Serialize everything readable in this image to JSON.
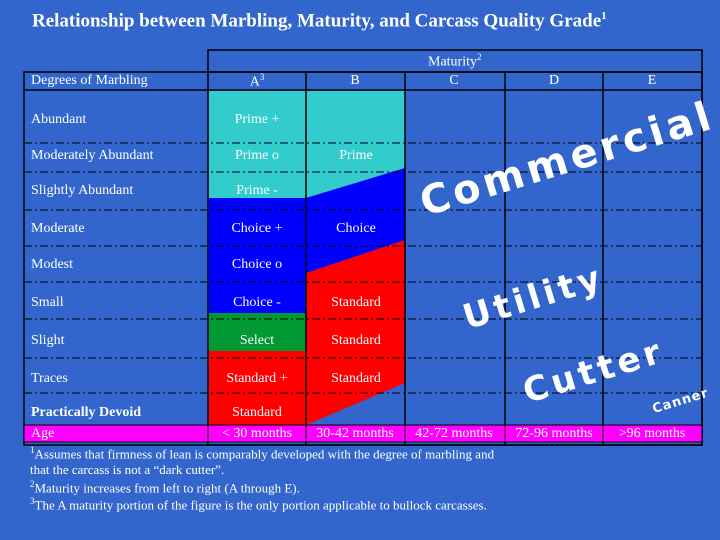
{
  "title": {
    "text": "Relationship between Marbling, Maturity, and Carcass Quality Grade",
    "sup": "1"
  },
  "maturity_header": {
    "text": "Maturity",
    "sup": "2"
  },
  "marbling_header": "Degrees of Marbling",
  "columns": [
    {
      "label": "A",
      "sup": "3"
    },
    {
      "label": "B",
      "sup": ""
    },
    {
      "label": "C",
      "sup": ""
    },
    {
      "label": "D",
      "sup": ""
    },
    {
      "label": "E",
      "sup": ""
    }
  ],
  "rows": [
    {
      "label": "Abundant",
      "a": "Prime +",
      "b": ""
    },
    {
      "label": "Moderately Abundant",
      "a": "Prime o",
      "b": "Prime"
    },
    {
      "label": "Slightly Abundant",
      "a": "Prime -",
      "b": ""
    },
    {
      "label": "Moderate",
      "a": "Choice +",
      "b": "Choice"
    },
    {
      "label": "Modest",
      "a": "Choice o",
      "b": ""
    },
    {
      "label": "Small",
      "a": "Choice -",
      "b": "Standard"
    },
    {
      "label": "Slight",
      "a": "Select",
      "b": "Standard"
    },
    {
      "label": "Traces",
      "a": "Standard +",
      "b": "Standard"
    },
    {
      "label": "Practically Devoid",
      "a": "Standard",
      "b": ""
    }
  ],
  "age_row": {
    "label": "Age",
    "values": [
      "< 30 months",
      "30-42 months",
      "42-72 months",
      "72-96 months",
      ">96 months"
    ]
  },
  "overlay_labels": {
    "commercial": "Commercial",
    "utility": "Utility",
    "cutter": "Cutter",
    "canner": "Canner"
  },
  "footnotes": [
    {
      "sup": "1",
      "text": "Assumes that firmness of lean is comparably developed with the degree of marbling and"
    },
    {
      "sup": "",
      "text": "that the carcass is not a “dark cutter”."
    },
    {
      "sup": "2",
      "text": "Maturity increases from left to right (A through E)."
    },
    {
      "sup": "3",
      "text": "The A maturity portion of the figure is the only portion applicable to bullock carcasses."
    }
  ],
  "colors": {
    "background": "#3366cc",
    "prime": "#33cccc",
    "choice": "#0000ff",
    "select": "#009933",
    "standard": "#ff0000",
    "age_band": "#ff00ff"
  }
}
